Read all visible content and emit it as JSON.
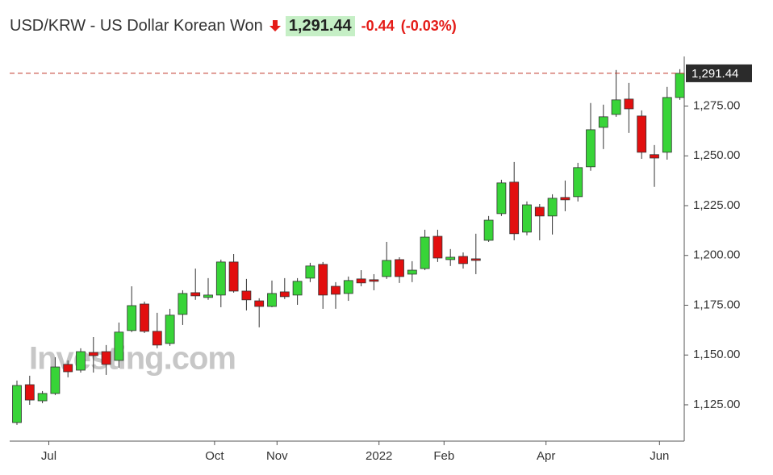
{
  "header": {
    "title": "USD/KRW - US Dollar Korean Won",
    "price": "1,291.44",
    "change": "-0.44",
    "change_percent": "(-0.03%)"
  },
  "chart_data": {
    "type": "candlestick",
    "watermark": "Investing.com",
    "up_color": "#38d438",
    "down_color": "#e20f0f",
    "categories": [
      null,
      null,
      null,
      null,
      null,
      null,
      null,
      null,
      null,
      null,
      null,
      null,
      null,
      null,
      null,
      null,
      null,
      null,
      null,
      null,
      null,
      null,
      null,
      null,
      null,
      null,
      null,
      null,
      null,
      null,
      null,
      null,
      null,
      null,
      null,
      null,
      null,
      null,
      null,
      null,
      null,
      null,
      null,
      null,
      null,
      null,
      null,
      null,
      null,
      null,
      null,
      null,
      null
    ],
    "open": [
      1116.1,
      1135.1,
      1127.0,
      1130.7,
      1145.3,
      1142.4,
      1151.3,
      1151.7,
      1147.3,
      1162.3,
      1175.6,
      1161.9,
      1155.8,
      1170.4,
      1181.3,
      1178.9,
      1180.1,
      1196.7,
      1182.1,
      1177.2,
      1174.4,
      1181.7,
      1180.1,
      1188.6,
      1195.5,
      1184.5,
      1180.9,
      1188.2,
      1187.8,
      1189.4,
      1197.9,
      1190.6,
      1193.4,
      1209.6,
      1197.9,
      1199.5,
      1198.3,
      1207.6,
      1221.0,
      1236.8,
      1211.7,
      1224.2,
      1219.8,
      1229.1,
      1229.5,
      1244.5,
      1264.3,
      1270.8,
      1278.5,
      1270.0,
      1250.6,
      1251.8,
      1279.3
    ],
    "high": [
      1137.2,
      1139.6,
      1131.9,
      1148.9,
      1147.3,
      1153.4,
      1159.0,
      1155.0,
      1166.3,
      1184.5,
      1176.8,
      1171.2,
      1173.2,
      1182.5,
      1193.4,
      1188.6,
      1197.9,
      1200.7,
      1188.2,
      1178.5,
      1187.4,
      1188.6,
      1188.6,
      1196.3,
      1196.7,
      1186.6,
      1189.4,
      1192.6,
      1190.6,
      1206.8,
      1199.1,
      1197.1,
      1212.9,
      1212.9,
      1203.2,
      1201.5,
      1210.9,
      1219.8,
      1238.0,
      1246.9,
      1227.1,
      1225.8,
      1230.7,
      1237.6,
      1246.5,
      1276.5,
      1275.7,
      1293.1,
      1286.6,
      1272.8,
      1255.4,
      1284.6,
      1293.5
    ],
    "low": [
      1114.9,
      1125.0,
      1125.8,
      1129.9,
      1138.8,
      1141.2,
      1141.2,
      1140.0,
      1143.6,
      1161.5,
      1161.0,
      1153.4,
      1154.6,
      1165.1,
      1177.7,
      1177.7,
      1174.0,
      1181.3,
      1172.4,
      1163.9,
      1174.0,
      1178.1,
      1175.2,
      1186.6,
      1173.2,
      1173.2,
      1177.2,
      1184.5,
      1182.5,
      1188.2,
      1186.2,
      1186.6,
      1192.6,
      1196.7,
      1194.7,
      1193.4,
      1190.6,
      1206.8,
      1219.8,
      1207.6,
      1210.1,
      1207.6,
      1210.5,
      1222.2,
      1227.1,
      1242.5,
      1253.4,
      1269.6,
      1261.5,
      1248.5,
      1234.4,
      1248.1,
      1278.1
    ],
    "close": [
      1134.7,
      1127.4,
      1130.7,
      1144.0,
      1141.6,
      1151.7,
      1149.7,
      1145.3,
      1161.5,
      1174.8,
      1161.9,
      1155.0,
      1170.0,
      1180.9,
      1179.7,
      1180.1,
      1196.7,
      1182.1,
      1177.7,
      1174.4,
      1180.9,
      1179.3,
      1187.0,
      1194.7,
      1180.1,
      1180.5,
      1187.4,
      1186.2,
      1187.0,
      1197.5,
      1189.4,
      1192.6,
      1209.2,
      1198.7,
      1199.1,
      1195.9,
      1197.5,
      1217.7,
      1236.4,
      1210.9,
      1225.4,
      1219.8,
      1228.7,
      1227.9,
      1244.1,
      1263.1,
      1269.6,
      1278.1,
      1273.6,
      1251.8,
      1248.9,
      1279.3,
      1291.44
    ],
    "price_line": {
      "value": 1291.44,
      "label": "1,291.44",
      "color": "#c0392b"
    },
    "ylim": [
      1113,
      1298
    ],
    "yticks": [
      {
        "value": 1125,
        "label": "1,125.00"
      },
      {
        "value": 1150,
        "label": "1,150.00"
      },
      {
        "value": 1175,
        "label": "1,175.00"
      },
      {
        "value": 1200,
        "label": "1,200.00"
      },
      {
        "value": 1225,
        "label": "1,225.00"
      },
      {
        "value": 1250,
        "label": "1,250.00"
      },
      {
        "value": 1275,
        "label": "1,275.00"
      }
    ],
    "xticks": [
      {
        "value": 2.5,
        "label": "Jul"
      },
      {
        "value": 15.5,
        "label": "Oct"
      },
      {
        "value": 20.4,
        "label": "Nov"
      },
      {
        "value": 28.4,
        "label": "2022"
      },
      {
        "value": 33.5,
        "label": "Feb"
      },
      {
        "value": 41.5,
        "label": "Apr"
      },
      {
        "value": 50.4,
        "label": "Jun"
      }
    ]
  }
}
